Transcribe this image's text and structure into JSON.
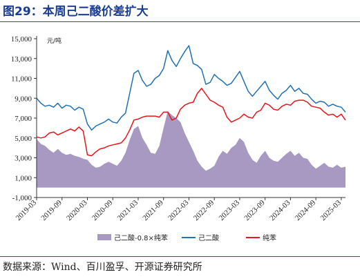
{
  "header": {
    "title": "图29：本周己二酸价差扩大"
  },
  "footer": {
    "source": "数据来源：Wind、百川盈孚、开源证券研究所"
  },
  "chart_data": {
    "type": "line",
    "unit_label": "元/吨",
    "x_range": [
      "2019-03",
      "2025-04"
    ],
    "x_ticks": [
      "2019-03",
      "2019-09",
      "2020-03",
      "2020-09",
      "2021-03",
      "2021-09",
      "2022-03",
      "2022-09",
      "2023-03",
      "2023-09",
      "2024-03",
      "2024-09",
      "2025-03"
    ],
    "y_range": [
      -1000,
      15000
    ],
    "y_ticks": [
      "-1,000",
      "1,000",
      "3,000",
      "5,000",
      "7,000",
      "9,000",
      "11,000",
      "13,000",
      "15,000"
    ],
    "y_tick_values": [
      -1000,
      1000,
      3000,
      5000,
      7000,
      9000,
      11000,
      13000,
      15000
    ],
    "grid": false,
    "legend_position": "bottom",
    "series": [
      {
        "name": "己二酸-0.8×纯苯",
        "type": "area",
        "color": "#a899c2",
        "points": [
          [
            "2019-03",
            4900
          ],
          [
            "2019-04",
            4400
          ],
          [
            "2019-05",
            4200
          ],
          [
            "2019-06",
            3800
          ],
          [
            "2019-07",
            3500
          ],
          [
            "2019-08",
            3900
          ],
          [
            "2019-09",
            3500
          ],
          [
            "2019-10",
            3300
          ],
          [
            "2019-11",
            3400
          ],
          [
            "2019-12",
            3200
          ],
          [
            "2020-01",
            3100
          ],
          [
            "2020-02",
            2900
          ],
          [
            "2020-03",
            2800
          ],
          [
            "2020-04",
            2300
          ],
          [
            "2020-05",
            2000
          ],
          [
            "2020-06",
            2100
          ],
          [
            "2020-07",
            2400
          ],
          [
            "2020-08",
            2600
          ],
          [
            "2020-09",
            2400
          ],
          [
            "2020-10",
            2200
          ],
          [
            "2020-11",
            2700
          ],
          [
            "2020-12",
            3500
          ],
          [
            "2021-01",
            4800
          ],
          [
            "2021-02",
            5900
          ],
          [
            "2021-03",
            6200
          ],
          [
            "2021-04",
            5000
          ],
          [
            "2021-05",
            4300
          ],
          [
            "2021-06",
            3500
          ],
          [
            "2021-07",
            3400
          ],
          [
            "2021-08",
            4200
          ],
          [
            "2021-09",
            6000
          ],
          [
            "2021-10",
            7700
          ],
          [
            "2021-11",
            7300
          ],
          [
            "2021-12",
            7000
          ],
          [
            "2022-01",
            6600
          ],
          [
            "2022-02",
            5500
          ],
          [
            "2022-03",
            4600
          ],
          [
            "2022-04",
            3700
          ],
          [
            "2022-05",
            2700
          ],
          [
            "2022-06",
            2100
          ],
          [
            "2022-07",
            1700
          ],
          [
            "2022-08",
            1900
          ],
          [
            "2022-09",
            2200
          ],
          [
            "2022-10",
            3100
          ],
          [
            "2022-11",
            3700
          ],
          [
            "2022-12",
            3400
          ],
          [
            "2023-01",
            4000
          ],
          [
            "2023-02",
            4300
          ],
          [
            "2023-03",
            5000
          ],
          [
            "2023-04",
            4600
          ],
          [
            "2023-05",
            3500
          ],
          [
            "2023-06",
            2800
          ],
          [
            "2023-07",
            2500
          ],
          [
            "2023-08",
            3200
          ],
          [
            "2023-09",
            3700
          ],
          [
            "2023-10",
            3000
          ],
          [
            "2023-11",
            2700
          ],
          [
            "2023-12",
            2600
          ],
          [
            "2024-01",
            3000
          ],
          [
            "2024-02",
            3400
          ],
          [
            "2024-03",
            3700
          ],
          [
            "2024-04",
            3200
          ],
          [
            "2024-05",
            3500
          ],
          [
            "2024-06",
            3000
          ],
          [
            "2024-07",
            2900
          ],
          [
            "2024-08",
            2300
          ],
          [
            "2024-09",
            1900
          ],
          [
            "2024-10",
            2200
          ],
          [
            "2024-11",
            2500
          ],
          [
            "2024-12",
            2100
          ],
          [
            "2025-01",
            2000
          ],
          [
            "2025-02",
            2300
          ],
          [
            "2025-03",
            2000
          ],
          [
            "2025-04",
            2100
          ]
        ]
      },
      {
        "name": "己二酸",
        "type": "line",
        "color": "#1f6fb5",
        "points": [
          [
            "2019-03",
            9000
          ],
          [
            "2019-04",
            8500
          ],
          [
            "2019-05",
            8200
          ],
          [
            "2019-06",
            8300
          ],
          [
            "2019-07",
            8100
          ],
          [
            "2019-08",
            8500
          ],
          [
            "2019-09",
            8000
          ],
          [
            "2019-10",
            8300
          ],
          [
            "2019-11",
            8200
          ],
          [
            "2019-12",
            7800
          ],
          [
            "2020-01",
            8100
          ],
          [
            "2020-02",
            7900
          ],
          [
            "2020-03",
            6400
          ],
          [
            "2020-04",
            5800
          ],
          [
            "2020-05",
            6200
          ],
          [
            "2020-06",
            6400
          ],
          [
            "2020-07",
            6600
          ],
          [
            "2020-08",
            6900
          ],
          [
            "2020-09",
            6600
          ],
          [
            "2020-10",
            6500
          ],
          [
            "2020-11",
            7100
          ],
          [
            "2020-12",
            7500
          ],
          [
            "2021-01",
            9500
          ],
          [
            "2021-02",
            11500
          ],
          [
            "2021-03",
            11800
          ],
          [
            "2021-04",
            10800
          ],
          [
            "2021-05",
            10200
          ],
          [
            "2021-06",
            10400
          ],
          [
            "2021-07",
            11000
          ],
          [
            "2021-08",
            11300
          ],
          [
            "2021-09",
            12000
          ],
          [
            "2021-10",
            13800
          ],
          [
            "2021-11",
            12800
          ],
          [
            "2021-12",
            12200
          ],
          [
            "2022-01",
            13000
          ],
          [
            "2022-02",
            13700
          ],
          [
            "2022-03",
            14300
          ],
          [
            "2022-04",
            12500
          ],
          [
            "2022-05",
            12300
          ],
          [
            "2022-06",
            11900
          ],
          [
            "2022-07",
            10400
          ],
          [
            "2022-08",
            10600
          ],
          [
            "2022-09",
            11400
          ],
          [
            "2022-10",
            11000
          ],
          [
            "2022-11",
            10700
          ],
          [
            "2022-12",
            10300
          ],
          [
            "2023-01",
            10500
          ],
          [
            "2023-02",
            11100
          ],
          [
            "2023-03",
            11700
          ],
          [
            "2023-04",
            10700
          ],
          [
            "2023-05",
            9700
          ],
          [
            "2023-06",
            9200
          ],
          [
            "2023-07",
            9700
          ],
          [
            "2023-08",
            10200
          ],
          [
            "2023-09",
            10700
          ],
          [
            "2023-10",
            9800
          ],
          [
            "2023-11",
            9300
          ],
          [
            "2023-12",
            8900
          ],
          [
            "2024-01",
            9500
          ],
          [
            "2024-02",
            9800
          ],
          [
            "2024-03",
            10300
          ],
          [
            "2024-04",
            9700
          ],
          [
            "2024-05",
            10000
          ],
          [
            "2024-06",
            9500
          ],
          [
            "2024-07",
            9400
          ],
          [
            "2024-08",
            8900
          ],
          [
            "2024-09",
            8500
          ],
          [
            "2024-10",
            8700
          ],
          [
            "2024-11",
            8600
          ],
          [
            "2024-12",
            8200
          ],
          [
            "2025-01",
            8400
          ],
          [
            "2025-02",
            8200
          ],
          [
            "2025-03",
            8100
          ],
          [
            "2025-04",
            7600
          ]
        ]
      },
      {
        "name": "纯苯",
        "type": "line",
        "color": "#e8141b",
        "points": [
          [
            "2019-03",
            5100
          ],
          [
            "2019-04",
            5000
          ],
          [
            "2019-05",
            5100
          ],
          [
            "2019-06",
            5500
          ],
          [
            "2019-07",
            5600
          ],
          [
            "2019-08",
            5300
          ],
          [
            "2019-09",
            5500
          ],
          [
            "2019-10",
            5700
          ],
          [
            "2019-11",
            5900
          ],
          [
            "2019-12",
            5700
          ],
          [
            "2020-01",
            6100
          ],
          [
            "2020-02",
            5700
          ],
          [
            "2020-03",
            3300
          ],
          [
            "2020-04",
            3200
          ],
          [
            "2020-05",
            3600
          ],
          [
            "2020-06",
            3900
          ],
          [
            "2020-07",
            4000
          ],
          [
            "2020-08",
            4200
          ],
          [
            "2020-09",
            4300
          ],
          [
            "2020-10",
            4400
          ],
          [
            "2020-11",
            4500
          ],
          [
            "2020-12",
            5000
          ],
          [
            "2021-01",
            5800
          ],
          [
            "2021-02",
            6800
          ],
          [
            "2021-03",
            6900
          ],
          [
            "2021-04",
            7100
          ],
          [
            "2021-05",
            7200
          ],
          [
            "2021-06",
            7200
          ],
          [
            "2021-07",
            7200
          ],
          [
            "2021-08",
            7100
          ],
          [
            "2021-09",
            7600
          ],
          [
            "2021-10",
            7600
          ],
          [
            "2021-11",
            6800
          ],
          [
            "2021-12",
            7000
          ],
          [
            "2022-01",
            7900
          ],
          [
            "2022-02",
            8300
          ],
          [
            "2022-03",
            8500
          ],
          [
            "2022-04",
            8600
          ],
          [
            "2022-05",
            9500
          ],
          [
            "2022-06",
            10000
          ],
          [
            "2022-07",
            9400
          ],
          [
            "2022-08",
            8800
          ],
          [
            "2022-09",
            8600
          ],
          [
            "2022-10",
            8300
          ],
          [
            "2022-11",
            8100
          ],
          [
            "2022-12",
            7100
          ],
          [
            "2023-01",
            6600
          ],
          [
            "2023-02",
            6800
          ],
          [
            "2023-03",
            7000
          ],
          [
            "2023-04",
            7400
          ],
          [
            "2023-05",
            7100
          ],
          [
            "2023-06",
            7000
          ],
          [
            "2023-07",
            7600
          ],
          [
            "2023-08",
            7800
          ],
          [
            "2023-09",
            8500
          ],
          [
            "2023-10",
            8300
          ],
          [
            "2023-11",
            7900
          ],
          [
            "2023-12",
            7800
          ],
          [
            "2024-01",
            8200
          ],
          [
            "2024-02",
            8400
          ],
          [
            "2024-03",
            8300
          ],
          [
            "2024-04",
            8700
          ],
          [
            "2024-05",
            8800
          ],
          [
            "2024-06",
            8800
          ],
          [
            "2024-07",
            8600
          ],
          [
            "2024-08",
            8200
          ],
          [
            "2024-09",
            8100
          ],
          [
            "2024-10",
            8000
          ],
          [
            "2024-11",
            7600
          ],
          [
            "2024-12",
            7300
          ],
          [
            "2025-01",
            7400
          ],
          [
            "2025-02",
            7100
          ],
          [
            "2025-03",
            7400
          ],
          [
            "2025-04",
            6800
          ]
        ]
      }
    ]
  }
}
